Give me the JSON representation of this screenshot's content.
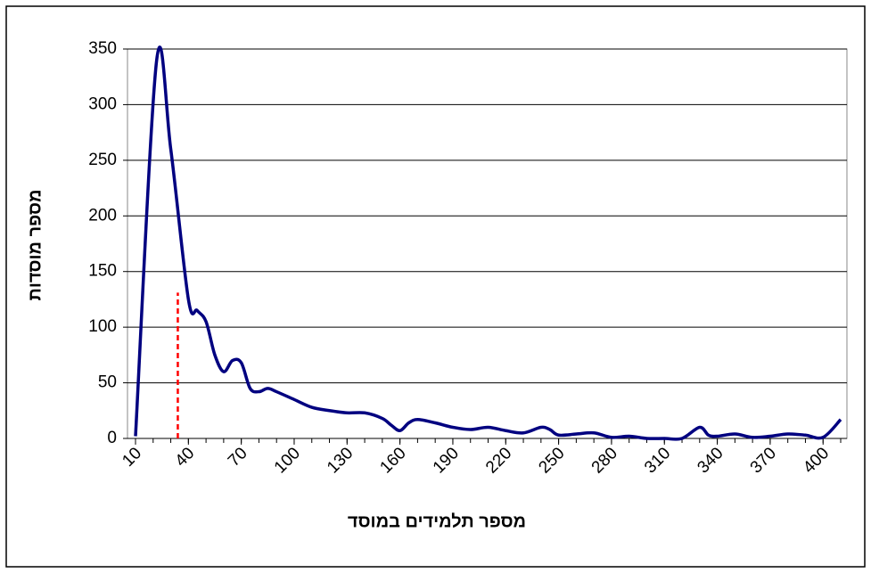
{
  "chart_data": {
    "type": "line",
    "x_label": "מספר תלמידים במוסד",
    "y_label": "מספר מוסדות",
    "x": [
      10,
      22,
      30,
      40,
      45,
      50,
      55,
      60,
      65,
      70,
      75,
      80,
      85,
      90,
      100,
      110,
      120,
      130,
      140,
      150,
      155,
      160,
      165,
      170,
      180,
      190,
      200,
      210,
      220,
      230,
      240,
      245,
      250,
      260,
      270,
      280,
      290,
      300,
      310,
      320,
      330,
      335,
      340,
      350,
      360,
      370,
      380,
      390,
      400,
      410
    ],
    "series": [
      {
        "name": "מספר מוסדות",
        "color": "#000080",
        "values": [
          2,
          340,
          260,
          125,
          115,
          105,
          75,
          60,
          70,
          68,
          45,
          42,
          45,
          42,
          35,
          28,
          25,
          23,
          23,
          18,
          12,
          7,
          14,
          17,
          14,
          10,
          8,
          10,
          7,
          5,
          10,
          8,
          3,
          4,
          5,
          1,
          2,
          0,
          0,
          0,
          10,
          3,
          2,
          4,
          1,
          2,
          4,
          3,
          1,
          17
        ]
      }
    ],
    "xlim": [
      10,
      410
    ],
    "xticks": [
      10,
      40,
      70,
      100,
      130,
      160,
      190,
      220,
      250,
      280,
      310,
      340,
      370,
      400
    ],
    "xticks_minor": [
      10,
      20,
      30,
      40,
      50,
      60,
      70,
      80,
      90,
      100,
      110,
      120,
      130,
      140,
      150,
      160,
      170,
      180,
      190,
      200,
      210,
      220,
      230,
      240,
      250,
      260,
      270,
      280,
      290,
      300,
      310,
      320,
      330,
      340,
      350,
      360,
      370,
      380,
      390,
      400,
      410
    ],
    "ylim": [
      0,
      350
    ],
    "yticks": [
      0,
      50,
      100,
      150,
      200,
      250,
      300,
      350
    ],
    "grid": true,
    "reference_line": {
      "x": 34,
      "y": 131,
      "color": "#ff0000"
    }
  }
}
